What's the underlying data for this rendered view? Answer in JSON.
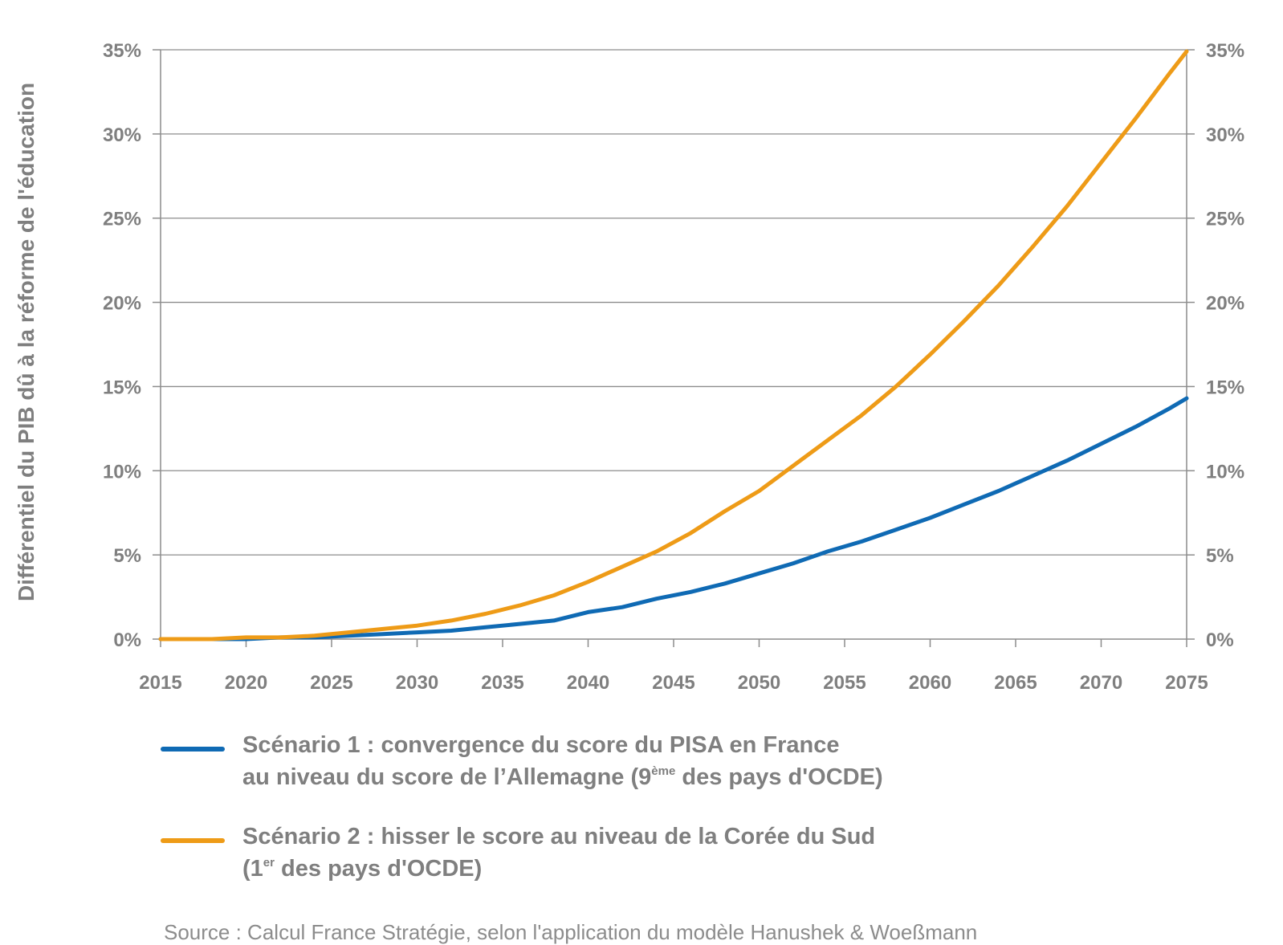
{
  "chart_data": {
    "type": "line",
    "ylabel": "Différentiel du PIB dû à la réforme de l'éducation",
    "xlim": [
      2015,
      2075
    ],
    "ylim": [
      0,
      35
    ],
    "y_ticks": [
      "0%",
      "5%",
      "10%",
      "15%",
      "20%",
      "25%",
      "30%",
      "35%"
    ],
    "y_tick_values": [
      0,
      5,
      10,
      15,
      20,
      25,
      30,
      35
    ],
    "x_ticks": [
      "2015",
      "2020",
      "2025",
      "2030",
      "2035",
      "2040",
      "2045",
      "2050",
      "2055",
      "2060",
      "2065",
      "2070",
      "2075"
    ],
    "x_tick_values": [
      2015,
      2020,
      2025,
      2030,
      2035,
      2040,
      2045,
      2050,
      2055,
      2060,
      2065,
      2070,
      2075
    ],
    "grid": true,
    "secondary_y_axis": true,
    "legend_position": "bottom",
    "series": [
      {
        "color": "#0f6ab4",
        "x": [
          2015,
          2018,
          2020,
          2022,
          2024,
          2026,
          2028,
          2030,
          2032,
          2034,
          2036,
          2038,
          2040,
          2042,
          2044,
          2046,
          2048,
          2050,
          2052,
          2054,
          2056,
          2058,
          2060,
          2062,
          2064,
          2066,
          2068,
          2070,
          2072,
          2074,
          2075
        ],
        "y": [
          0,
          0,
          0,
          0.1,
          0.1,
          0.2,
          0.3,
          0.4,
          0.5,
          0.7,
          0.9,
          1.1,
          1.6,
          1.9,
          2.4,
          2.8,
          3.3,
          3.9,
          4.5,
          5.2,
          5.8,
          6.5,
          7.2,
          8.0,
          8.8,
          9.7,
          10.6,
          11.6,
          12.6,
          13.7,
          14.3
        ]
      },
      {
        "color": "#ee9b17",
        "x": [
          2015,
          2018,
          2020,
          2022,
          2024,
          2026,
          2028,
          2030,
          2032,
          2034,
          2036,
          2038,
          2040,
          2042,
          2044,
          2046,
          2048,
          2050,
          2052,
          2054,
          2056,
          2058,
          2060,
          2062,
          2064,
          2066,
          2068,
          2070,
          2072,
          2074,
          2075
        ],
        "y": [
          0,
          0,
          0.1,
          0.1,
          0.2,
          0.4,
          0.6,
          0.8,
          1.1,
          1.5,
          2.0,
          2.6,
          3.4,
          4.3,
          5.2,
          6.3,
          7.6,
          8.8,
          10.3,
          11.8,
          13.3,
          15.0,
          16.9,
          18.9,
          21.0,
          23.3,
          25.7,
          28.3,
          30.9,
          33.6,
          34.9
        ]
      }
    ]
  },
  "legend": {
    "s1_line1": "Scénario 1 : convergence du score du PISA en France",
    "s1_line2_before": "au niveau du score de l’Allemagne (9",
    "s1_sup": "ème",
    "s1_line2_after": " des pays d'OCDE)",
    "s2_line1": "Scénario 2 :  hisser le score au niveau de la Corée du Sud",
    "s2_line2_before": "(1",
    "s2_sup": "er",
    "s2_line2_after": " des pays d'OCDE)"
  },
  "source": "Source : Calcul  France Stratégie, selon l'application du modèle Hanushek & Woeßmann"
}
